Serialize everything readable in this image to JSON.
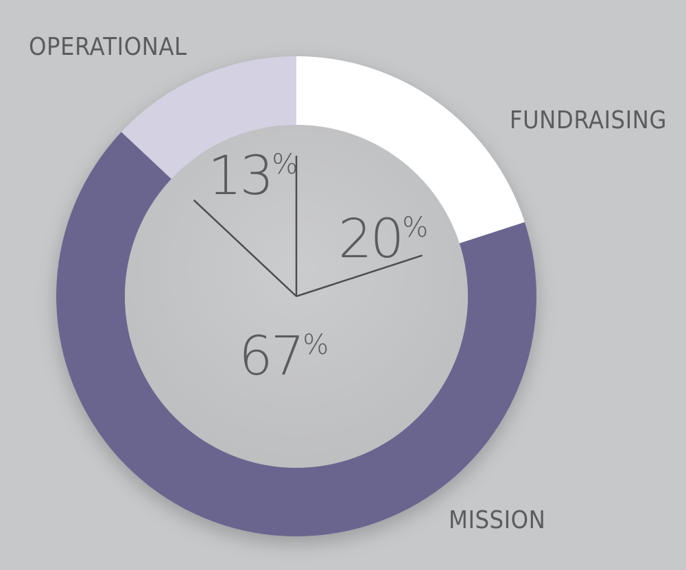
{
  "chart_data": {
    "type": "pie",
    "style": "donut",
    "grid": false,
    "legend": "direct labels",
    "title": "",
    "segments": [
      {
        "label": "FUNDRAISING",
        "value": 20,
        "display": "20%",
        "color": "#ffffff"
      },
      {
        "label": "MISSION",
        "value": 67,
        "display": "67%",
        "color": "#6b658f"
      },
      {
        "label": "OPERATIONAL",
        "value": 13,
        "display": "13%",
        "color": "#d3d1e2"
      }
    ],
    "divider_color": "#4d4d4f",
    "text_color": "#5b5c5e"
  }
}
